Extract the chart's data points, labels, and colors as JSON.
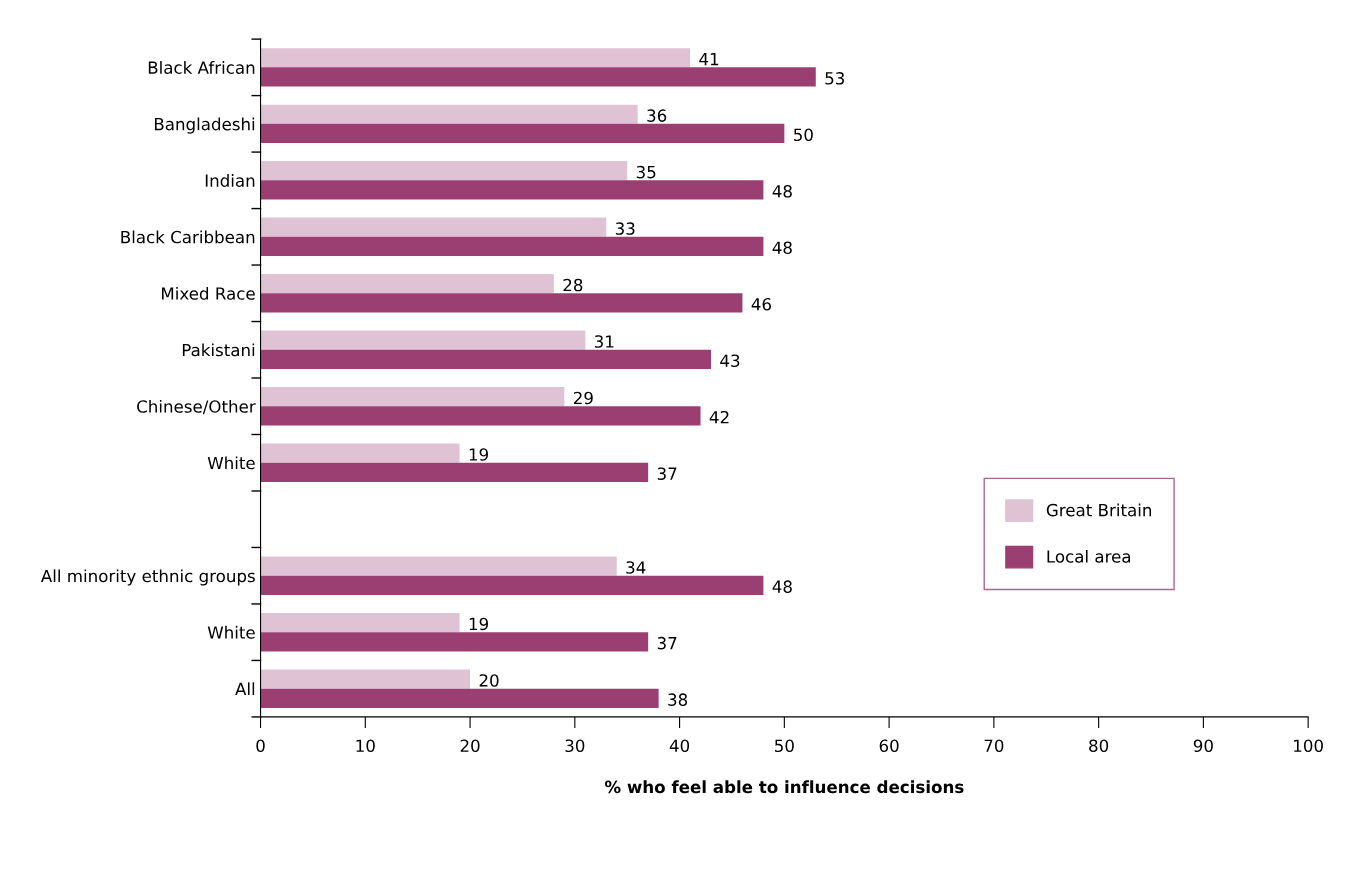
{
  "chart_data": {
    "type": "bar",
    "orientation": "horizontal",
    "xlabel": "% who feel able to influence decisions",
    "categories": [
      "Black African",
      "Bangladeshi",
      "Indian",
      "Black Caribbean",
      "Mixed Race",
      "Pakistani",
      "Chinese/Other",
      "White",
      null,
      "All minority ethnic groups",
      "White",
      "All"
    ],
    "series": [
      {
        "name": "Great Britain",
        "color": "#dfc3d4",
        "values": [
          41,
          36,
          35,
          33,
          28,
          31,
          29,
          19,
          null,
          34,
          19,
          20
        ]
      },
      {
        "name": "Local area",
        "color": "#9b3f72",
        "values": [
          53,
          50,
          48,
          48,
          46,
          43,
          42,
          37,
          null,
          48,
          37,
          38
        ]
      }
    ],
    "xlim": [
      0,
      100
    ],
    "xticks": [
      0,
      10,
      20,
      30,
      40,
      50,
      60,
      70,
      80,
      90,
      100
    ],
    "data_labels": true,
    "grid": false,
    "legend": "right"
  }
}
